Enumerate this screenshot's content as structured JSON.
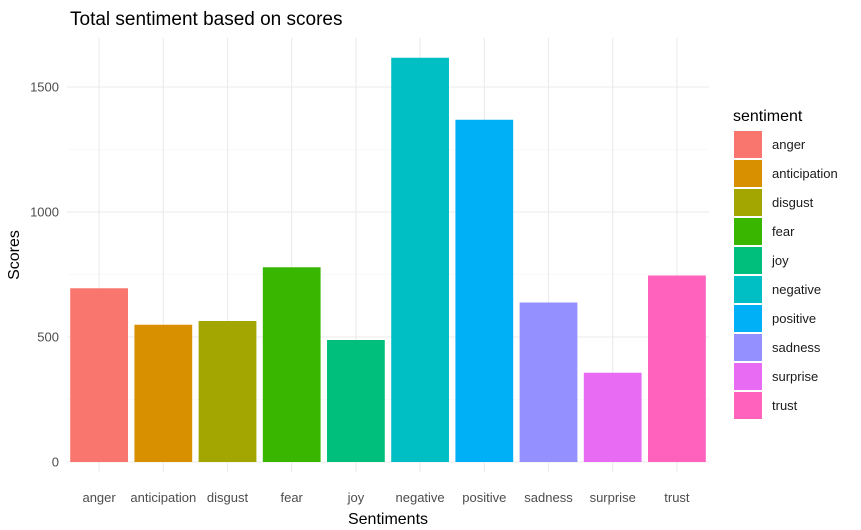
{
  "chart_data": {
    "type": "bar",
    "title": "Total sentiment based on scores",
    "xlabel": "Sentiments",
    "ylabel": "Scores",
    "categories": [
      "anger",
      "anticipation",
      "disgust",
      "fear",
      "joy",
      "negative",
      "positive",
      "sadness",
      "surprise",
      "trust"
    ],
    "values": [
      695,
      549,
      564,
      779,
      488,
      1617,
      1369,
      638,
      357,
      746
    ],
    "ylim": [
      0,
      1700
    ],
    "yticks": [
      0,
      500,
      1000,
      1500
    ],
    "grid": true,
    "legend": {
      "title": "sentiment",
      "placement": "right",
      "entries": [
        "anger",
        "anticipation",
        "disgust",
        "fear",
        "joy",
        "negative",
        "positive",
        "sadness",
        "surprise",
        "trust"
      ]
    },
    "colors": [
      "#F8766D",
      "#D89000",
      "#A3A500",
      "#39B600",
      "#00BF7D",
      "#00BFC4",
      "#00B0F6",
      "#9590FF",
      "#E76BF3",
      "#FF62BC"
    ]
  }
}
